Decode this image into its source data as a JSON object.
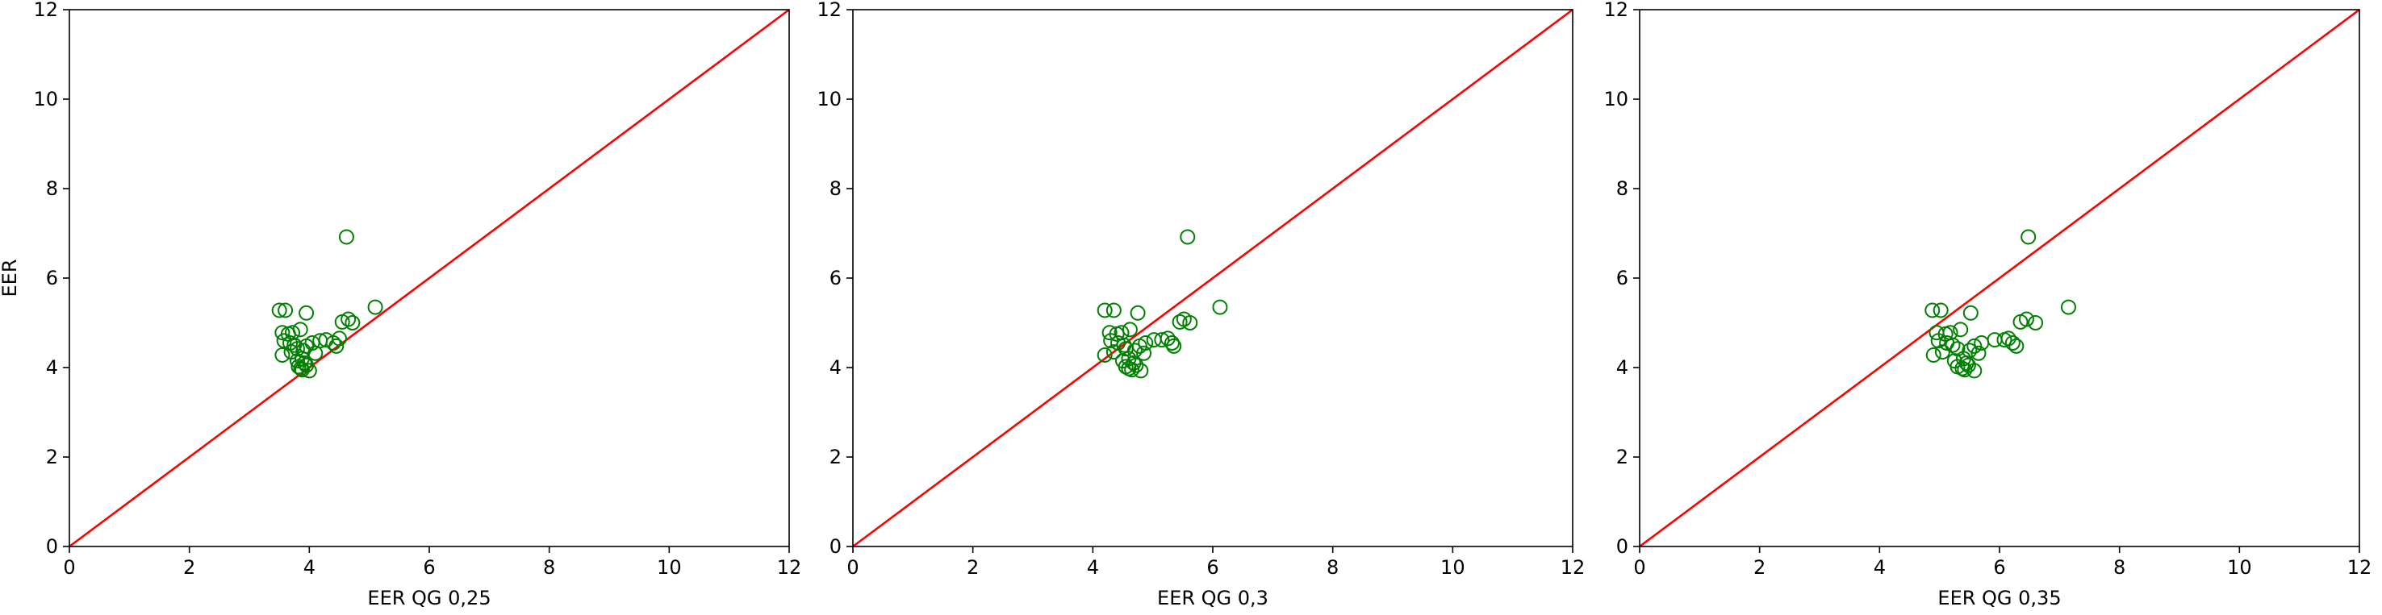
{
  "figure": {
    "background": "#ffffff"
  },
  "chart_data": [
    {
      "type": "scatter",
      "title": "",
      "xlabel": "EER QG 0,25",
      "ylabel": "EER",
      "xlim": [
        0,
        12
      ],
      "ylim": [
        0,
        12
      ],
      "xticks": [
        0,
        2,
        4,
        6,
        8,
        10,
        12
      ],
      "yticks": [
        0,
        2,
        4,
        6,
        8,
        10,
        12
      ],
      "grid": false,
      "marker": {
        "shape": "hollow-circle",
        "color": "#008000"
      },
      "reference_line": {
        "x": [
          0,
          12
        ],
        "y": [
          0,
          12
        ],
        "color": "#ff0000"
      },
      "series": [
        {
          "points": [
            [
              3.5,
              5.28
            ],
            [
              3.6,
              5.28
            ],
            [
              3.95,
              5.22
            ],
            [
              4.62,
              6.92
            ],
            [
              5.1,
              5.35
            ],
            [
              3.55,
              4.78
            ],
            [
              3.65,
              4.75
            ],
            [
              3.72,
              4.78
            ],
            [
              3.85,
              4.85
            ],
            [
              3.58,
              4.6
            ],
            [
              3.68,
              4.55
            ],
            [
              3.75,
              4.5
            ],
            [
              3.55,
              4.28
            ],
            [
              3.7,
              4.35
            ],
            [
              3.8,
              4.42
            ],
            [
              3.9,
              4.38
            ],
            [
              3.95,
              4.48
            ],
            [
              4.05,
              4.55
            ],
            [
              4.18,
              4.6
            ],
            [
              4.28,
              4.62
            ],
            [
              4.4,
              4.55
            ],
            [
              4.45,
              4.48
            ],
            [
              4.5,
              4.65
            ],
            [
              3.8,
              4.15
            ],
            [
              3.88,
              4.2
            ],
            [
              3.92,
              4.1
            ],
            [
              3.82,
              4.02
            ],
            [
              3.86,
              3.98
            ],
            [
              3.88,
              3.95
            ],
            [
              3.95,
              4.05
            ],
            [
              4.0,
              3.93
            ],
            [
              4.55,
              5.02
            ],
            [
              4.65,
              5.08
            ],
            [
              4.72,
              5.0
            ],
            [
              4.1,
              4.32
            ]
          ]
        }
      ]
    },
    {
      "type": "scatter",
      "title": "",
      "xlabel": "EER QG 0,3",
      "ylabel": "",
      "xlim": [
        0,
        12
      ],
      "ylim": [
        0,
        12
      ],
      "xticks": [
        0,
        2,
        4,
        6,
        8,
        10,
        12
      ],
      "yticks": [
        0,
        2,
        4,
        6,
        8,
        10,
        12
      ],
      "grid": false,
      "marker": {
        "shape": "hollow-circle",
        "color": "#008000"
      },
      "reference_line": {
        "x": [
          0,
          12
        ],
        "y": [
          0,
          12
        ],
        "color": "#ff0000"
      },
      "series": [
        {
          "points": [
            [
              4.2,
              5.28
            ],
            [
              4.35,
              5.28
            ],
            [
              4.75,
              5.22
            ],
            [
              5.58,
              6.92
            ],
            [
              6.12,
              5.35
            ],
            [
              4.28,
              4.78
            ],
            [
              4.4,
              4.75
            ],
            [
              4.48,
              4.78
            ],
            [
              4.62,
              4.85
            ],
            [
              4.3,
              4.6
            ],
            [
              4.42,
              4.55
            ],
            [
              4.52,
              4.5
            ],
            [
              4.2,
              4.28
            ],
            [
              4.35,
              4.35
            ],
            [
              4.55,
              4.42
            ],
            [
              4.7,
              4.38
            ],
            [
              4.78,
              4.48
            ],
            [
              4.88,
              4.55
            ],
            [
              5.02,
              4.62
            ],
            [
              5.15,
              4.62
            ],
            [
              5.32,
              4.55
            ],
            [
              5.35,
              4.48
            ],
            [
              5.25,
              4.65
            ],
            [
              4.5,
              4.15
            ],
            [
              4.6,
              4.2
            ],
            [
              4.68,
              4.1
            ],
            [
              4.55,
              4.02
            ],
            [
              4.6,
              3.98
            ],
            [
              4.65,
              3.95
            ],
            [
              4.72,
              4.05
            ],
            [
              4.8,
              3.93
            ],
            [
              5.45,
              5.02
            ],
            [
              5.52,
              5.08
            ],
            [
              5.62,
              5.0
            ],
            [
              4.85,
              4.32
            ]
          ]
        }
      ]
    },
    {
      "type": "scatter",
      "title": "",
      "xlabel": "EER QG 0,35",
      "ylabel": "",
      "xlim": [
        0,
        12
      ],
      "ylim": [
        0,
        12
      ],
      "xticks": [
        0,
        2,
        4,
        6,
        8,
        10,
        12
      ],
      "yticks": [
        0,
        2,
        4,
        6,
        8,
        10,
        12
      ],
      "grid": false,
      "marker": {
        "shape": "hollow-circle",
        "color": "#008000"
      },
      "reference_line": {
        "x": [
          0,
          12
        ],
        "y": [
          0,
          12
        ],
        "color": "#ff0000"
      },
      "series": [
        {
          "points": [
            [
              4.88,
              5.28
            ],
            [
              5.02,
              5.28
            ],
            [
              5.52,
              5.22
            ],
            [
              6.48,
              6.92
            ],
            [
              7.15,
              5.35
            ],
            [
              4.95,
              4.78
            ],
            [
              5.1,
              4.75
            ],
            [
              5.18,
              4.78
            ],
            [
              5.35,
              4.85
            ],
            [
              4.98,
              4.6
            ],
            [
              5.12,
              4.55
            ],
            [
              5.22,
              4.5
            ],
            [
              4.9,
              4.28
            ],
            [
              5.05,
              4.35
            ],
            [
              5.3,
              4.42
            ],
            [
              5.5,
              4.38
            ],
            [
              5.58,
              4.48
            ],
            [
              5.7,
              4.55
            ],
            [
              5.92,
              4.62
            ],
            [
              6.08,
              4.62
            ],
            [
              6.22,
              4.55
            ],
            [
              6.28,
              4.48
            ],
            [
              6.15,
              4.65
            ],
            [
              5.25,
              4.15
            ],
            [
              5.4,
              4.2
            ],
            [
              5.45,
              4.1
            ],
            [
              5.3,
              4.02
            ],
            [
              5.38,
              3.98
            ],
            [
              5.42,
              3.95
            ],
            [
              5.48,
              4.05
            ],
            [
              5.58,
              3.93
            ],
            [
              6.35,
              5.02
            ],
            [
              6.45,
              5.08
            ],
            [
              6.6,
              5.0
            ],
            [
              5.65,
              4.32
            ]
          ]
        }
      ]
    }
  ]
}
